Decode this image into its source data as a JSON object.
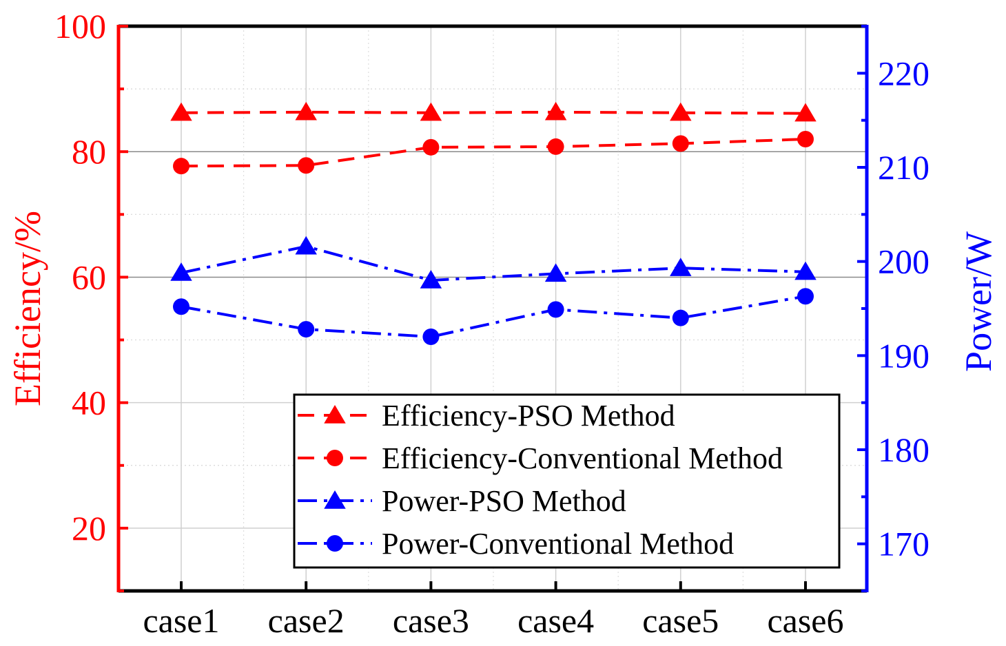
{
  "chart_data": {
    "type": "line",
    "categories": [
      "case1",
      "case2",
      "case3",
      "case4",
      "case5",
      "case6"
    ],
    "left_axis": {
      "label": "Efficiency/%",
      "range": [
        10,
        100
      ],
      "ticks": [
        20,
        40,
        60,
        80,
        100
      ],
      "color": "#ff0000"
    },
    "right_axis": {
      "label": "Power/W",
      "range": [
        165,
        225
      ],
      "ticks": [
        170,
        180,
        190,
        200,
        210,
        220
      ],
      "color": "#0000ff"
    },
    "grid": true,
    "legend_position": "bottom-right",
    "series": [
      {
        "name": "Efficiency-PSO Method",
        "axis": "left",
        "color": "#ff0000",
        "marker": "triangle",
        "dash": "dashed",
        "values": [
          86.2,
          86.3,
          86.2,
          86.3,
          86.2,
          86.1
        ]
      },
      {
        "name": "Efficiency-Conventional Method",
        "axis": "left",
        "color": "#ff0000",
        "marker": "circle",
        "dash": "dashed",
        "values": [
          77.7,
          77.8,
          80.7,
          80.8,
          81.3,
          82.0
        ]
      },
      {
        "name": "Power-PSO Method",
        "axis": "right",
        "color": "#0000ff",
        "marker": "triangle",
        "dash": "dashdot",
        "values": [
          198.8,
          201.6,
          198.0,
          198.7,
          199.3,
          198.9
        ]
      },
      {
        "name": "Power-Conventional Method",
        "axis": "right",
        "color": "#0000ff",
        "marker": "circle",
        "dash": "dashdot",
        "values": [
          195.2,
          192.8,
          192.0,
          194.9,
          194.0,
          196.3
        ]
      }
    ]
  }
}
